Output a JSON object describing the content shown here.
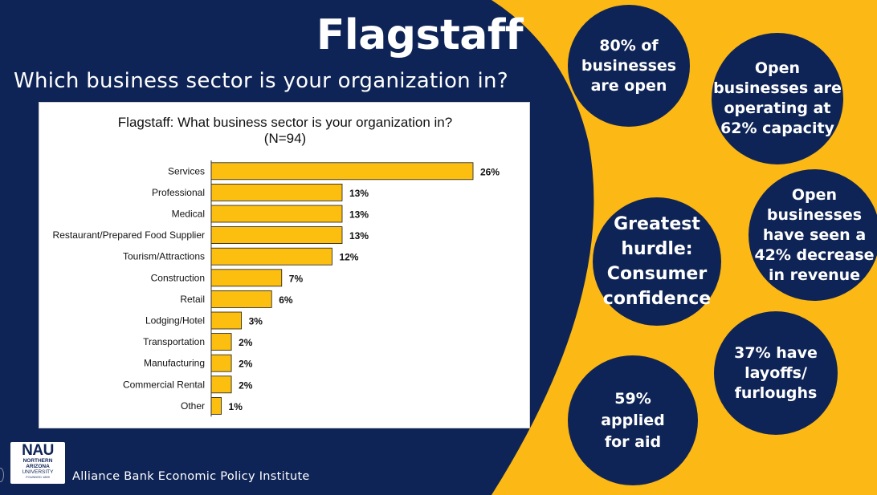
{
  "slide": {
    "title": "Flagstaff",
    "subtitle": "Which business sector is your organization in?",
    "footer": "Alliance Bank Economic Policy Institute",
    "colors": {
      "navy": "#0f2456",
      "gold": "#fcb814",
      "bar": "#fcbf10"
    }
  },
  "logo": {
    "name": "NAU",
    "line1": "NORTHERN",
    "line2": "ARIZONA",
    "line3": "UNIVERSITY",
    "line4": "FOUNDED 1899"
  },
  "bubbles": [
    {
      "id": "open",
      "lines": [
        "80% of",
        "businesses",
        "are open"
      ]
    },
    {
      "id": "capacity",
      "lines": [
        "Open",
        "businesses are",
        "operating at",
        "62% capacity"
      ]
    },
    {
      "id": "revenue",
      "lines": [
        "Open",
        "businesses",
        "have seen a",
        "42% decrease",
        "in revenue"
      ]
    },
    {
      "id": "hurdle",
      "lines": [
        "Greatest",
        "hurdle:",
        "Consumer",
        "confidence"
      ]
    },
    {
      "id": "layoffs",
      "lines": [
        "37% have",
        "layoffs/",
        "furloughs"
      ]
    },
    {
      "id": "aid",
      "lines": [
        "59%",
        "applied",
        "for aid"
      ]
    }
  ],
  "chart_data": {
    "type": "bar",
    "orientation": "horizontal",
    "title": "Flagstaff: What business sector is your organization in?",
    "subtitle": "(N=94)",
    "categories": [
      "Services",
      "Professional",
      "Medical",
      "Restaurant/Prepared Food Supplier",
      "Tourism/Attractions",
      "Construction",
      "Retail",
      "Lodging/Hotel",
      "Transportation",
      "Manufacturing",
      "Commercial Rental",
      "Other"
    ],
    "values": [
      26,
      13,
      13,
      13,
      12,
      7,
      6,
      3,
      2,
      2,
      2,
      1
    ],
    "value_labels": [
      "26%",
      "13%",
      "13%",
      "13%",
      "12%",
      "7%",
      "6%",
      "3%",
      "2%",
      "2%",
      "2%",
      "1%"
    ],
    "unit": "%",
    "grid": false,
    "legend": "none"
  }
}
